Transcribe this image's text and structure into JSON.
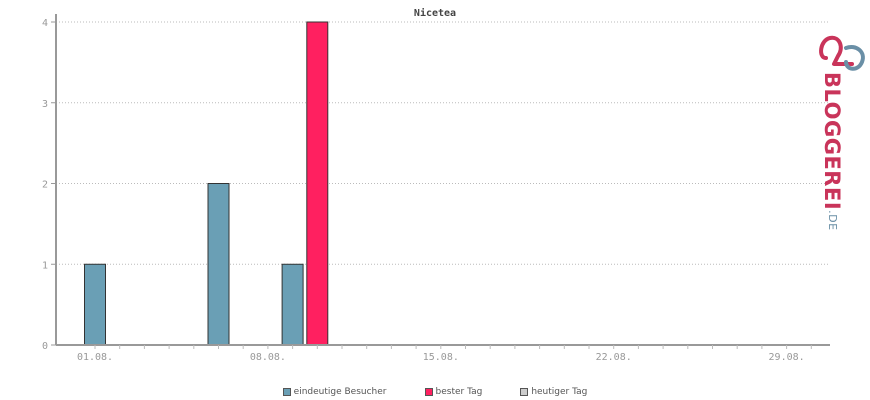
{
  "chart_data": {
    "type": "bar",
    "title": "Nicetea",
    "xlabel": "",
    "ylabel": "",
    "ylim": [
      0,
      4
    ],
    "yticks": [
      "0",
      "1",
      "2",
      "3",
      "4"
    ],
    "xticks": [
      {
        "day": 1,
        "label": "01.08."
      },
      {
        "day": 8,
        "label": "08.08."
      },
      {
        "day": 15,
        "label": "15.08."
      },
      {
        "day": 22,
        "label": "22.08."
      },
      {
        "day": 29,
        "label": "29.08."
      }
    ],
    "grid": true,
    "legend_position": "bottom",
    "series": [
      {
        "name": "eindeutige Besucher",
        "color": "#6a9fb5",
        "points": [
          {
            "day": 1,
            "value": 1
          },
          {
            "day": 6,
            "value": 2
          },
          {
            "day": 9,
            "value": 1
          }
        ]
      },
      {
        "name": "bester Tag",
        "color": "#ff2060",
        "points": [
          {
            "day": 10,
            "value": 4
          }
        ]
      },
      {
        "name": "heutiger Tag",
        "color": "#cccccc",
        "points": []
      }
    ]
  },
  "logo": {
    "text": "BLOGGEREI",
    "suffix": ".DE",
    "primary_color": "#c9345a",
    "secondary_color": "#6a8fa6"
  }
}
